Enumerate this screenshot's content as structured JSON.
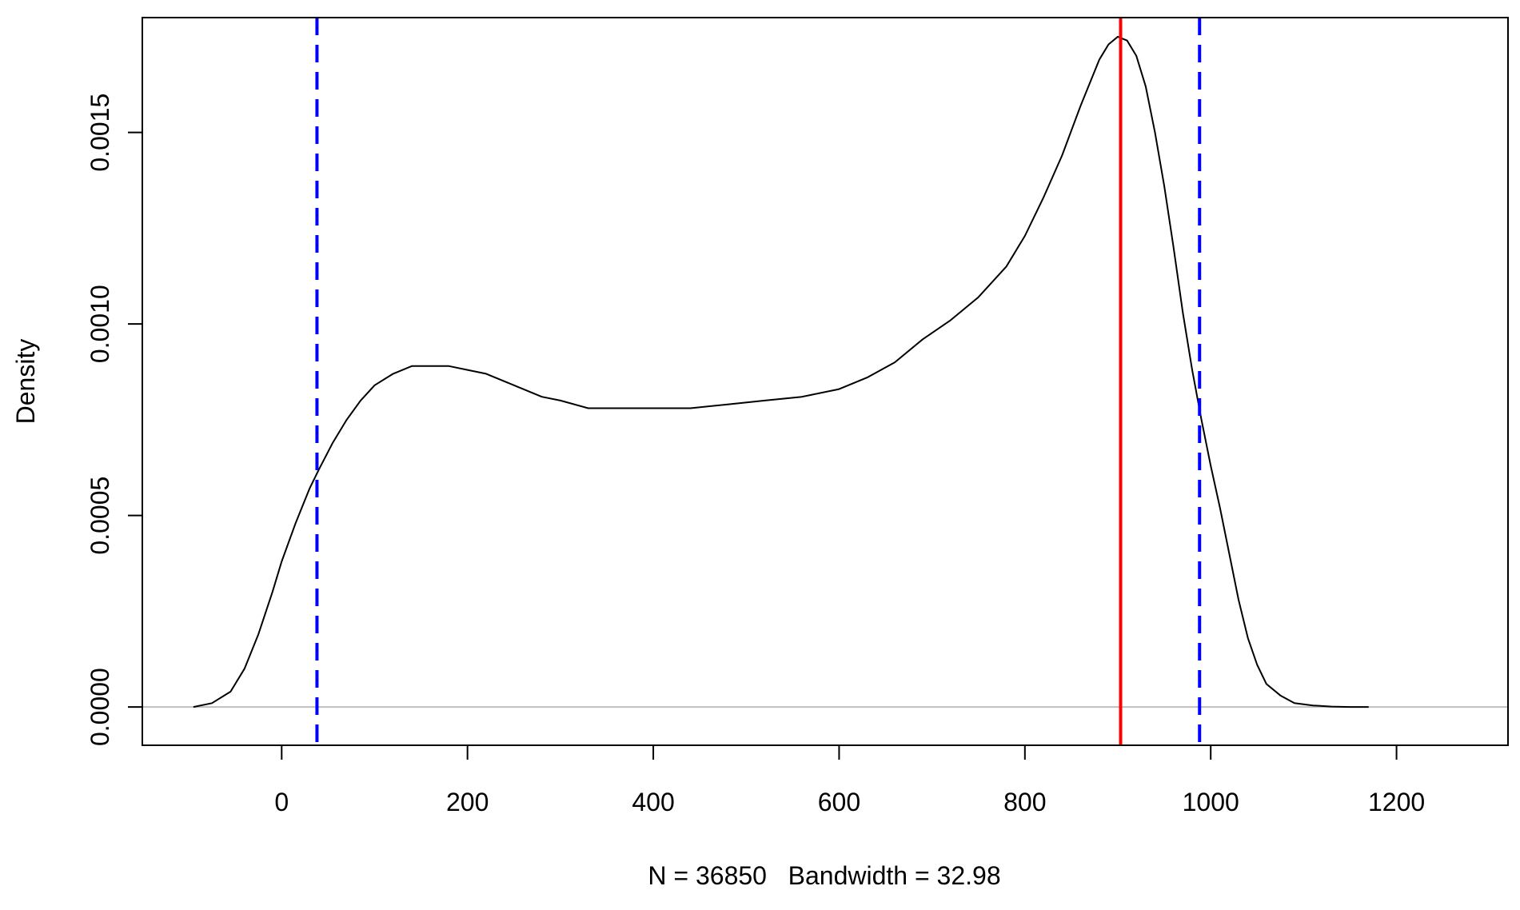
{
  "chart_data": {
    "type": "line",
    "title": "",
    "xlabel": "N = 36850   Bandwidth = 32.98",
    "ylabel": "Density",
    "xlim": [
      -150,
      1320
    ],
    "ylim": [
      -0.0001,
      0.0018
    ],
    "xticks": [
      0,
      200,
      400,
      600,
      800,
      1000,
      1200
    ],
    "xtick_labels": [
      "0",
      "200",
      "400",
      "600",
      "800",
      "1000",
      "1200"
    ],
    "yticks": [
      0,
      0.0005,
      0.001,
      0.0015
    ],
    "ytick_labels": [
      "0.0000",
      "0.0005",
      "0.0010",
      "0.0015"
    ],
    "grid": false,
    "series": [
      {
        "color": "#000000",
        "style": "solid",
        "x": [
          -95,
          -75,
          -55,
          -40,
          -25,
          -10,
          0,
          15,
          30,
          40,
          55,
          70,
          85,
          100,
          120,
          140,
          160,
          180,
          200,
          220,
          250,
          280,
          300,
          330,
          360,
          400,
          440,
          480,
          520,
          560,
          600,
          630,
          660,
          690,
          720,
          750,
          780,
          800,
          820,
          840,
          860,
          880,
          890,
          900,
          910,
          920,
          930,
          940,
          950,
          960,
          970,
          980,
          990,
          1000,
          1010,
          1020,
          1030,
          1040,
          1050,
          1060,
          1075,
          1090,
          1110,
          1130,
          1150,
          1170
        ],
        "y": [
          0.0,
          1e-05,
          4e-05,
          0.0001,
          0.00019,
          0.0003,
          0.00038,
          0.00048,
          0.00057,
          0.00062,
          0.00069,
          0.00075,
          0.0008,
          0.00084,
          0.00087,
          0.00089,
          0.00089,
          0.00089,
          0.00088,
          0.00087,
          0.00084,
          0.00081,
          0.0008,
          0.00078,
          0.00078,
          0.00078,
          0.00078,
          0.00079,
          0.0008,
          0.00081,
          0.00083,
          0.00086,
          0.0009,
          0.00096,
          0.00101,
          0.00107,
          0.00115,
          0.00123,
          0.00133,
          0.00144,
          0.00157,
          0.00169,
          0.00173,
          0.00175,
          0.00174,
          0.0017,
          0.00162,
          0.0015,
          0.00136,
          0.0012,
          0.00103,
          0.00088,
          0.00075,
          0.00063,
          0.00052,
          0.0004,
          0.00028,
          0.00018,
          0.00011,
          6e-05,
          3e-05,
          1e-05,
          4e-06,
          1e-06,
          0.0,
          0.0
        ]
      }
    ],
    "hlines": [
      {
        "y": 0,
        "color": "#bebebe",
        "style": "solid"
      }
    ],
    "vlines": [
      {
        "x": 38,
        "color": "#0000ff",
        "style": "dashed"
      },
      {
        "x": 903,
        "color": "#ff0000",
        "style": "solid"
      },
      {
        "x": 988,
        "color": "#0000ff",
        "style": "dashed"
      }
    ]
  }
}
